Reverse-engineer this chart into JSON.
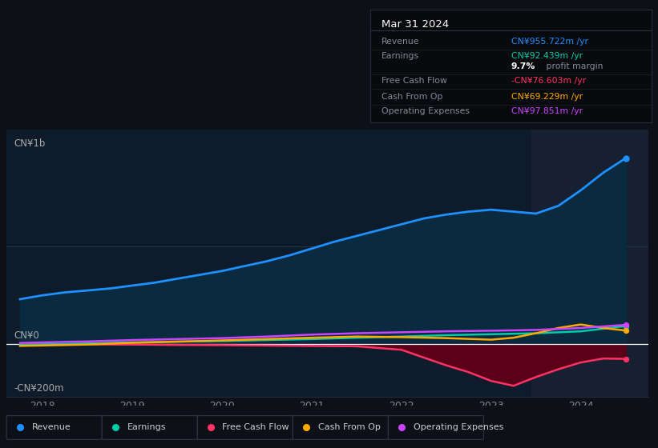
{
  "bg_color": "#0d1117",
  "chart_bg": "#0d1b2a",
  "title_box_bg": "#080a0e",
  "title_box_border": "#2a2a3a",
  "title": "Mar 31 2024",
  "rows": [
    {
      "label": "Revenue",
      "value": "CN¥955.722m /yr",
      "value_color": "#1e90ff"
    },
    {
      "label": "Earnings",
      "value": "CN¥92.439m /yr",
      "value_color": "#00ccaa"
    },
    {
      "label": "",
      "value": "9.7% profit margin",
      "value_color": "#aaaaaa",
      "pct": "9.7%"
    },
    {
      "label": "Free Cash Flow",
      "value": "-CN¥76.603m /yr",
      "value_color": "#ff3366"
    },
    {
      "label": "Cash From Op",
      "value": "CN¥69.229m /yr",
      "value_color": "#ffaa00"
    },
    {
      "label": "Operating Expenses",
      "value": "CN¥97.851m /yr",
      "value_color": "#cc44ff"
    }
  ],
  "ylabel_top": "CN¥1b",
  "ylabel_zero": "CN¥0",
  "ylabel_neg": "-CN¥200m",
  "ylim": [
    -270,
    1100
  ],
  "xmin": 2017.6,
  "xmax": 2024.75,
  "xticks": [
    2018,
    2019,
    2020,
    2021,
    2022,
    2023,
    2024
  ],
  "highlight_x_start": 2023.45,
  "highlight_x_end": 2024.75,
  "rev_color": "#1e90ff",
  "rev_fill": "#0a2a40",
  "earn_color": "#00ccaa",
  "fcf_color": "#ff3366",
  "fcf_fill": "#5a0018",
  "cop_color": "#ffaa00",
  "opex_color": "#cc44ff",
  "x_revenue": [
    2017.75,
    2018.0,
    2018.25,
    2018.5,
    2018.75,
    2019.0,
    2019.25,
    2019.5,
    2019.75,
    2020.0,
    2020.25,
    2020.5,
    2020.75,
    2021.0,
    2021.25,
    2021.5,
    2021.75,
    2022.0,
    2022.25,
    2022.5,
    2022.75,
    2023.0,
    2023.25,
    2023.5,
    2023.75,
    2024.0,
    2024.25,
    2024.5
  ],
  "y_revenue": [
    230,
    250,
    265,
    275,
    285,
    300,
    315,
    335,
    355,
    375,
    400,
    425,
    455,
    490,
    525,
    555,
    585,
    615,
    645,
    665,
    680,
    690,
    680,
    670,
    710,
    790,
    880,
    955
  ],
  "x_earnings": [
    2017.75,
    2018.0,
    2018.5,
    2019.0,
    2019.5,
    2020.0,
    2020.5,
    2021.0,
    2021.5,
    2022.0,
    2022.5,
    2023.0,
    2023.5,
    2024.0,
    2024.5
  ],
  "y_earnings": [
    -5,
    -2,
    3,
    8,
    12,
    15,
    20,
    25,
    32,
    38,
    45,
    50,
    55,
    65,
    92
  ],
  "x_fcf": [
    2017.75,
    2018.0,
    2018.5,
    2019.0,
    2019.5,
    2020.0,
    2020.5,
    2021.0,
    2021.5,
    2022.0,
    2022.25,
    2022.5,
    2022.75,
    2023.0,
    2023.25,
    2023.5,
    2023.75,
    2024.0,
    2024.25,
    2024.5
  ],
  "y_fcf": [
    -5,
    -3,
    -2,
    -3,
    -5,
    -6,
    -8,
    -10,
    -12,
    -30,
    -70,
    -110,
    -145,
    -190,
    -215,
    -170,
    -130,
    -95,
    -75,
    -77
  ],
  "x_cashop": [
    2017.75,
    2018.0,
    2018.5,
    2019.0,
    2019.5,
    2020.0,
    2020.5,
    2021.0,
    2021.5,
    2022.0,
    2022.5,
    2023.0,
    2023.25,
    2023.5,
    2023.75,
    2024.0,
    2024.25,
    2024.5
  ],
  "y_cashop": [
    -10,
    -8,
    -3,
    6,
    12,
    18,
    25,
    32,
    38,
    35,
    30,
    22,
    32,
    55,
    82,
    100,
    82,
    69
  ],
  "x_opex": [
    2017.75,
    2018.0,
    2018.5,
    2019.0,
    2019.5,
    2020.0,
    2020.5,
    2021.0,
    2021.5,
    2022.0,
    2022.5,
    2023.0,
    2023.5,
    2024.0,
    2024.5
  ],
  "y_opex": [
    5,
    8,
    13,
    20,
    25,
    30,
    38,
    48,
    55,
    60,
    65,
    68,
    72,
    82,
    98
  ],
  "legend_items": [
    {
      "label": "Revenue",
      "color": "#1e90ff"
    },
    {
      "label": "Earnings",
      "color": "#00ccaa"
    },
    {
      "label": "Free Cash Flow",
      "color": "#ff3366"
    },
    {
      "label": "Cash From Op",
      "color": "#ffaa00"
    },
    {
      "label": "Operating Expenses",
      "color": "#cc44ff"
    }
  ]
}
